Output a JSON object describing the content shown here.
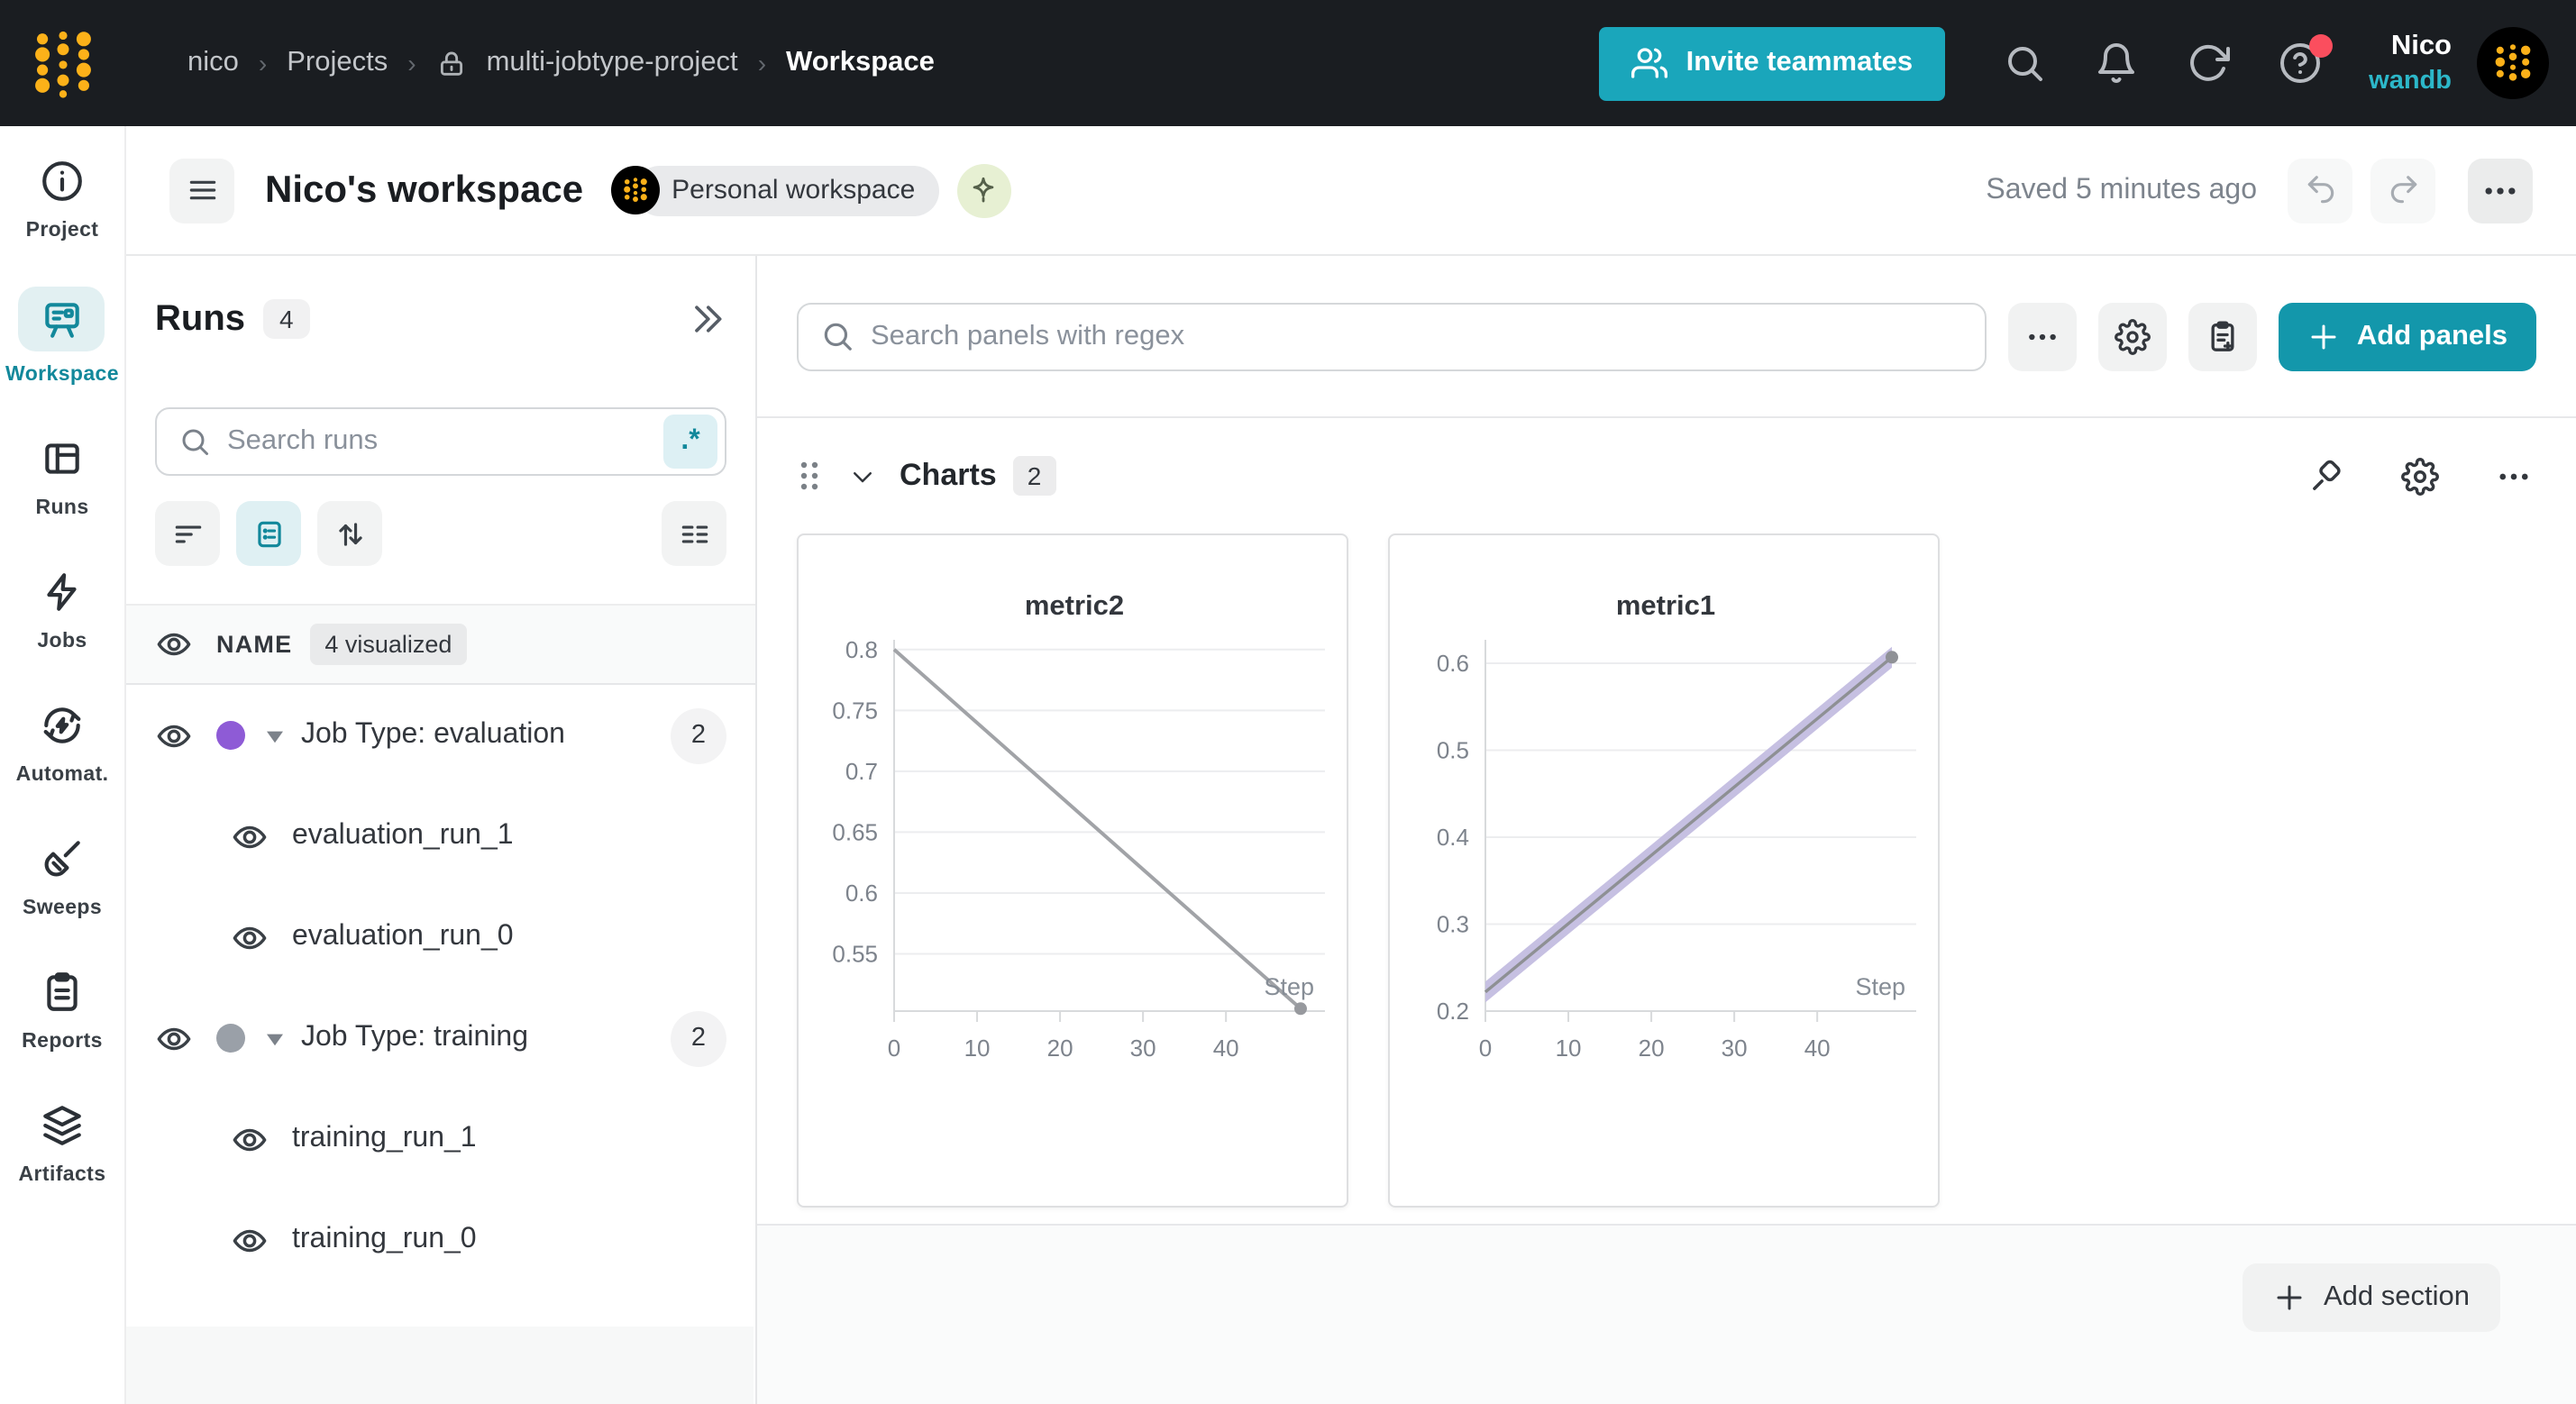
{
  "topbar": {
    "breadcrumb": {
      "user": "nico",
      "section": "Projects",
      "project": "multi-jobtype-project",
      "page": "Workspace"
    },
    "invite_label": "Invite teammates",
    "user_name": "Nico",
    "user_org": "wandb"
  },
  "header": {
    "title": "Nico's workspace",
    "badge": "Personal workspace",
    "saved": "Saved 5 minutes ago"
  },
  "sidenav": {
    "items": [
      {
        "label": "Project",
        "icon": "info-icon"
      },
      {
        "label": "Workspace",
        "icon": "workspace-board-icon",
        "active": true
      },
      {
        "label": "Runs",
        "icon": "table-icon"
      },
      {
        "label": "Jobs",
        "icon": "lightning-icon"
      },
      {
        "label": "Automat.",
        "icon": "automation-icon"
      },
      {
        "label": "Sweeps",
        "icon": "broom-icon"
      },
      {
        "label": "Reports",
        "icon": "clipboard-icon"
      },
      {
        "label": "Artifacts",
        "icon": "layers-icon"
      }
    ]
  },
  "runs_panel": {
    "title": "Runs",
    "count": "4",
    "search_placeholder": "Search runs",
    "regex_label": ".*",
    "name_header": "NAME",
    "visualized": "4 visualized",
    "groups": [
      {
        "label": "Job Type: evaluation",
        "count": "2",
        "color": "#8e5bd6",
        "runs": [
          "evaluation_run_1",
          "evaluation_run_0"
        ]
      },
      {
        "label": "Job Type: training",
        "count": "2",
        "color": "#9aa0a8",
        "runs": [
          "training_run_1",
          "training_run_0"
        ]
      }
    ]
  },
  "main": {
    "search_placeholder": "Search panels with regex",
    "add_panels_label": "Add panels",
    "section_title": "Charts",
    "section_count": "2",
    "add_section_label": "Add section"
  },
  "colors": {
    "accent_teal": "#1397ab",
    "invite_teal": "#1aa6bb",
    "active_teal": "#12889b",
    "brand_yellow": "#fcb119",
    "group_purple": "#8e5bd6",
    "group_gray": "#9aa0a8",
    "notification_red": "#fb4e5e",
    "topbar_bg": "#1a1d21"
  },
  "chart_data": [
    {
      "type": "line",
      "title": "metric2",
      "xlabel": "Step",
      "xlim": [
        0,
        49
      ],
      "ylim": [
        0.503,
        0.808
      ],
      "xticks": [
        0,
        10,
        20,
        30,
        40
      ],
      "yticks": [
        0.55,
        0.6,
        0.65,
        0.7,
        0.75,
        0.8
      ],
      "series": [
        {
          "x": [
            0,
            49
          ],
          "y": [
            0.8,
            0.505
          ],
          "color": "#a1a3a7",
          "width": 2,
          "end_dot": "#97999e"
        }
      ]
    },
    {
      "type": "line",
      "title": "metric1",
      "xlabel": "Step",
      "xlim": [
        0,
        49
      ],
      "ylim": [
        0.2,
        0.627
      ],
      "xticks": [
        0,
        10,
        20,
        30,
        40
      ],
      "yticks": [
        0.2,
        0.3,
        0.4,
        0.5,
        0.6
      ],
      "series": [
        {
          "x": [
            0,
            49
          ],
          "y": [
            0.222,
            0.607
          ],
          "color": "#8e9094",
          "width": 1.7,
          "band": {
            "halfwidth": 0.012,
            "color": "#c6c0e2"
          },
          "end_dot": "#8f9196"
        }
      ]
    }
  ]
}
